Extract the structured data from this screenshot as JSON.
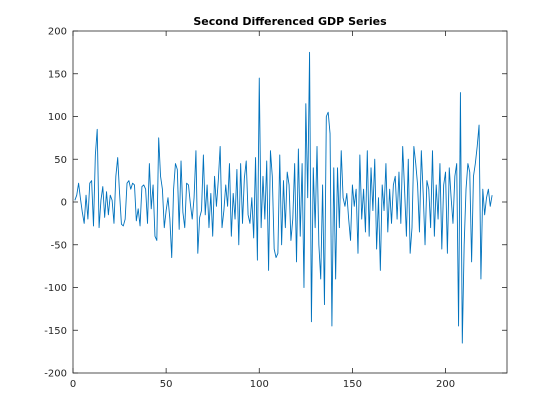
{
  "chart_data": {
    "type": "line",
    "title": "Second Differenced GDP Series",
    "xlabel": "",
    "ylabel": "",
    "xlim": [
      0,
      233
    ],
    "ylim": [
      -200,
      200
    ],
    "grid": false,
    "x_ticks": [
      0,
      50,
      100,
      150,
      200
    ],
    "x_tick_labels": [
      "0",
      "50",
      "100",
      "150",
      "200"
    ],
    "y_ticks": [
      -200,
      -150,
      -100,
      -50,
      0,
      50,
      100,
      150,
      200
    ],
    "y_tick_labels": [
      "-200",
      "-150",
      "-100",
      "-50",
      "0",
      "50",
      "100",
      "150",
      "200"
    ],
    "series": [
      {
        "color": "#0072BD",
        "x_start": 1,
        "values": [
          2,
          8,
          22,
          4,
          -12,
          -25,
          8,
          -20,
          22,
          25,
          -28,
          55,
          85,
          -30,
          2,
          18,
          -18,
          12,
          -15,
          8,
          2,
          -25,
          30,
          52,
          10,
          -26,
          -28,
          -20,
          22,
          25,
          15,
          22,
          20,
          -22,
          -8,
          -28,
          18,
          20,
          15,
          -25,
          45,
          -8,
          20,
          -40,
          -45,
          75,
          30,
          15,
          -30,
          -10,
          5,
          -20,
          -65,
          15,
          45,
          38,
          -32,
          48,
          -12,
          -30,
          22,
          20,
          -2,
          -20,
          5,
          60,
          -60,
          -18,
          -10,
          55,
          -15,
          20,
          -30,
          10,
          -40,
          30,
          -5,
          25,
          65,
          -30,
          -10,
          20,
          -5,
          45,
          -40,
          10,
          -20,
          38,
          -50,
          45,
          -25,
          28,
          48,
          -15,
          -25,
          5,
          -42,
          52,
          -68,
          145,
          -30,
          30,
          -20,
          48,
          -80,
          60,
          30,
          -55,
          -65,
          -60,
          55,
          -50,
          25,
          -30,
          35,
          20,
          -45,
          -20,
          45,
          -70,
          62,
          -40,
          45,
          -100,
          115,
          5,
          175,
          -140,
          40,
          -30,
          65,
          -50,
          -90,
          20,
          -120,
          100,
          105,
          80,
          -145,
          40,
          -90,
          40,
          -30,
          60,
          5,
          -5,
          10,
          -20,
          -45,
          20,
          -5,
          15,
          -60,
          55,
          -20,
          15,
          -35,
          60,
          -40,
          40,
          -10,
          50,
          -55,
          5,
          -80,
          20,
          -10,
          45,
          -35,
          15,
          -25,
          20,
          30,
          -20,
          35,
          -25,
          65,
          15,
          -40,
          50,
          -60,
          -30,
          65,
          45,
          20,
          -35,
          60,
          10,
          -50,
          25,
          15,
          -30,
          60,
          -40,
          20,
          -20,
          45,
          -55,
          20,
          35,
          -60,
          40,
          5,
          -25,
          30,
          45,
          -145,
          128,
          -165,
          -50,
          15,
          45,
          35,
          -70,
          30,
          45,
          65,
          90,
          -90,
          15,
          -15,
          5,
          15,
          -5,
          8
        ]
      }
    ]
  }
}
